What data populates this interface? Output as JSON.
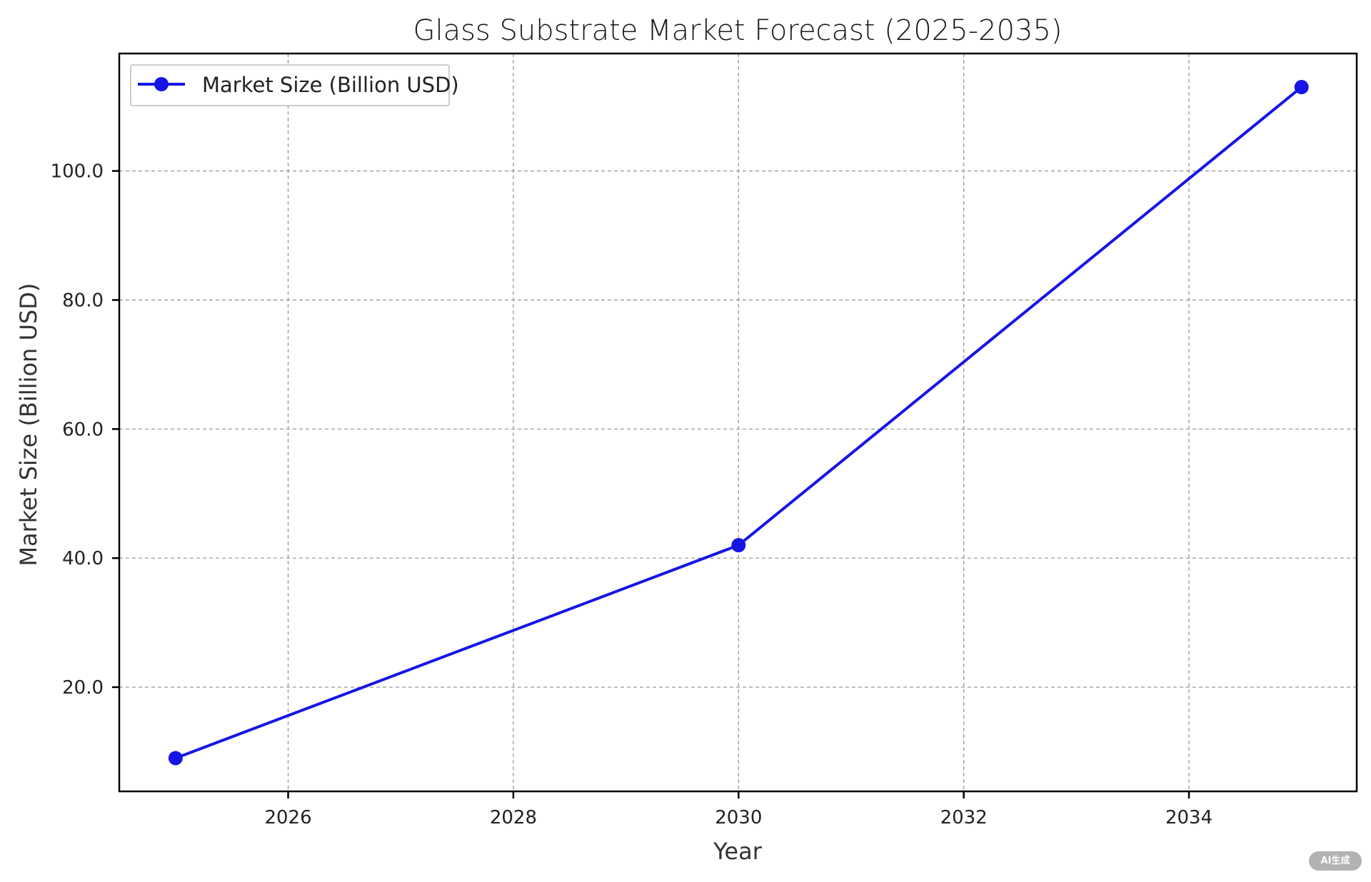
{
  "chart_data": {
    "type": "line",
    "title": "Glass Substrate Market Forecast (2025-2035)",
    "xlabel": "Year",
    "ylabel": "Market Size (Billion USD)",
    "x": [
      2025,
      2030,
      2035
    ],
    "series": [
      {
        "name": "Market Size (Billion USD)",
        "values": [
          9.0,
          42.0,
          113.0
        ],
        "color": "#1515e6",
        "marker": "circle"
      }
    ],
    "xticks": [
      2026,
      2028,
      2030,
      2032,
      2034
    ],
    "xtick_labels": [
      "2026",
      "2028",
      "2030",
      "2032",
      "2034"
    ],
    "yticks": [
      20,
      40,
      60,
      80,
      100
    ],
    "ytick_labels": [
      "20.0",
      "40.0",
      "60.0",
      "80.0",
      "100.0"
    ],
    "xlim": [
      2024.5,
      2035.49
    ],
    "ylim": [
      3.85,
      118.2
    ],
    "grid": true,
    "legend_position": "upper left"
  },
  "watermark": {
    "label": "AI生成"
  }
}
